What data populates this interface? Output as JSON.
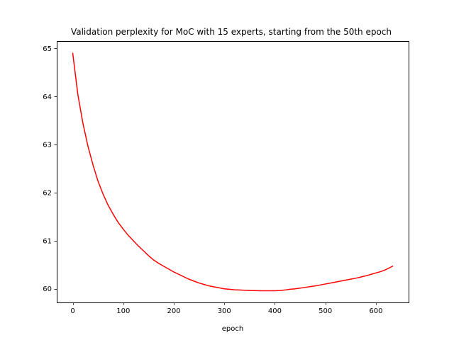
{
  "chart_data": {
    "type": "line",
    "title": "Validation perplexity for MoC with 15 experts, starting from the 50th epoch",
    "xlabel": "epoch",
    "ylabel": "",
    "xlim": [
      -31.65,
      664.65
    ],
    "ylim": [
      59.716,
      65.154
    ],
    "xticks": [
      0,
      100,
      200,
      300,
      400,
      500,
      600
    ],
    "yticks": [
      60,
      61,
      62,
      63,
      64,
      65
    ],
    "grid": false,
    "series": [
      {
        "color": "#ff0000",
        "x": [
          0,
          10,
          20,
          30,
          40,
          50,
          60,
          70,
          80,
          90,
          100,
          110,
          120,
          130,
          140,
          150,
          160,
          170,
          180,
          190,
          200,
          210,
          220,
          230,
          240,
          250,
          260,
          270,
          280,
          290,
          300,
          310,
          320,
          330,
          340,
          350,
          360,
          370,
          380,
          390,
          400,
          410,
          420,
          430,
          440,
          450,
          460,
          470,
          480,
          490,
          500,
          510,
          520,
          530,
          540,
          550,
          560,
          570,
          580,
          590,
          600,
          610,
          620,
          633
        ],
        "values": [
          64.9,
          64.05,
          63.45,
          62.97,
          62.58,
          62.24,
          61.97,
          61.74,
          61.55,
          61.38,
          61.24,
          61.11,
          61.0,
          60.89,
          60.79,
          60.69,
          60.6,
          60.53,
          60.47,
          60.41,
          60.35,
          60.3,
          60.25,
          60.2,
          60.16,
          60.12,
          60.09,
          60.06,
          60.04,
          60.02,
          60.0,
          59.99,
          59.98,
          59.975,
          59.97,
          59.965,
          59.962,
          59.96,
          59.96,
          59.96,
          59.96,
          59.965,
          59.975,
          59.99,
          60.0,
          60.015,
          60.03,
          60.045,
          60.06,
          60.08,
          60.1,
          60.12,
          60.14,
          60.16,
          60.18,
          60.2,
          60.22,
          60.245,
          60.27,
          60.3,
          60.33,
          60.36,
          60.4,
          60.47
        ]
      }
    ]
  }
}
